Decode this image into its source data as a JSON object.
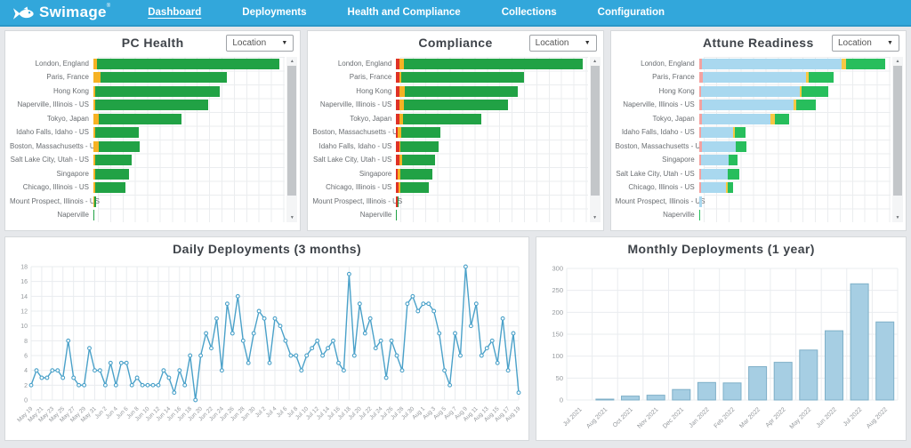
{
  "nav": {
    "brand": "Swimage",
    "brand_reg": "®",
    "items": [
      {
        "label": "Dashboard",
        "active": true
      },
      {
        "label": "Deployments",
        "active": false
      },
      {
        "label": "Health and Compliance",
        "active": false
      },
      {
        "label": "Collections",
        "active": false
      },
      {
        "label": "Configuration",
        "active": false
      }
    ]
  },
  "ui": {
    "filter_label": "Location",
    "icons": {
      "dropdown_arrow": "▼",
      "scroll_up": "▲",
      "scroll_down": "▼"
    }
  },
  "colors": {
    "nav_bg": "#32A7DB",
    "green": "#21A245",
    "green_bright": "#27BE5C",
    "amber": "#F6B223",
    "yellow": "#F7C844",
    "red": "#DF3226",
    "salmon": "#F4A2A0",
    "light_blue": "#A9D8EF",
    "line_blue": "#4AA1C9",
    "bar_blue": "#A6CEE3",
    "bar_blue_border": "#7FB0C8",
    "grid": "#E9ECEF",
    "tick_text": "#95999D"
  },
  "chart_data": [
    {
      "id": "pc_health",
      "type": "bar",
      "orientation": "horizontal",
      "stacked": true,
      "title": "PC Health",
      "categories": [
        "London, England",
        "Paris, France",
        "Hong Kong",
        "Naperville, Illinois - US",
        "Tokyo, Japan",
        "Idaho Falls, Idaho - US",
        "Boston, Massachusetts - US",
        "Salt Lake City, Utah - US",
        "Singapore",
        "Chicago, Illinois - US",
        "Mount Prospect, Illinois - US",
        "Naperville"
      ],
      "rows_pct": [
        [
          [
            "amber",
            2
          ],
          [
            "green",
            95
          ]
        ],
        [
          [
            "amber",
            3.5
          ],
          [
            "green",
            66
          ]
        ],
        [
          [
            "amber",
            1
          ],
          [
            "green",
            65
          ]
        ],
        [
          [
            "amber",
            1
          ],
          [
            "green",
            59
          ]
        ],
        [
          [
            "amber",
            3
          ],
          [
            "green",
            43
          ]
        ],
        [
          [
            "amber",
            1
          ],
          [
            "green",
            22.5
          ]
        ],
        [
          [
            "amber",
            3
          ],
          [
            "green",
            21
          ]
        ],
        [
          [
            "amber",
            1
          ],
          [
            "green",
            19
          ]
        ],
        [
          [
            "amber",
            0.7
          ],
          [
            "green",
            18
          ]
        ],
        [
          [
            "amber",
            0.7
          ],
          [
            "green",
            16
          ]
        ],
        [
          [
            "amber",
            0.6
          ],
          [
            "green",
            0.7
          ]
        ],
        [
          [
            "green",
            0.5
          ]
        ]
      ]
    },
    {
      "id": "compliance",
      "type": "bar",
      "orientation": "horizontal",
      "stacked": true,
      "title": "Compliance",
      "categories": [
        "London, England",
        "Paris, France",
        "Hong Kong",
        "Naperville, Illinois - US",
        "Tokyo, Japan",
        "Boston, Massachusetts - US",
        "Idaho Falls, Idaho - US",
        "Salt Lake City, Utah - US",
        "Singapore",
        "Chicago, Illinois - US",
        "Mount Prospect, Illinois - US",
        "Naperville"
      ],
      "rows_pct": [
        [
          [
            "red",
            1.6
          ],
          [
            "amber",
            2.6
          ],
          [
            "green",
            93
          ]
        ],
        [
          [
            "red",
            1.6
          ],
          [
            "amber",
            1.2
          ],
          [
            "green",
            64
          ]
        ],
        [
          [
            "red",
            1.6
          ],
          [
            "amber",
            3
          ],
          [
            "green",
            59
          ]
        ],
        [
          [
            "red",
            1.6
          ],
          [
            "amber",
            2.6
          ],
          [
            "green",
            54
          ]
        ],
        [
          [
            "red",
            1.6
          ],
          [
            "amber",
            2
          ],
          [
            "green",
            41
          ]
        ],
        [
          [
            "red",
            0.6
          ],
          [
            "amber",
            2
          ],
          [
            "green",
            20.5
          ]
        ],
        [
          [
            "red",
            1.6
          ],
          [
            "amber",
            0.5
          ],
          [
            "green",
            20
          ]
        ],
        [
          [
            "red",
            1.6
          ],
          [
            "amber",
            1.6
          ],
          [
            "green",
            17
          ]
        ],
        [
          [
            "red",
            0.6
          ],
          [
            "amber",
            1.6
          ],
          [
            "green",
            16.5
          ]
        ],
        [
          [
            "red",
            1.2
          ],
          [
            "amber",
            1.2
          ],
          [
            "green",
            14.5
          ]
        ],
        [
          [
            "red",
            0.6
          ],
          [
            "green",
            0.8
          ]
        ],
        [
          [
            "green",
            0.5
          ]
        ]
      ]
    },
    {
      "id": "attune",
      "type": "bar",
      "orientation": "horizontal",
      "stacked": true,
      "title": "Attune Readiness",
      "categories": [
        "London, England",
        "Paris, France",
        "Hong Kong",
        "Naperville, Illinois - US",
        "Tokyo, Japan",
        "Idaho Falls, Idaho - US",
        "Boston, Massachusetts - US",
        "Singapore",
        "Salt Lake City, Utah - US",
        "Chicago, Illinois - US",
        "Mount Prospect, Illinois - US",
        "Naperville"
      ],
      "rows_pct": [
        [
          [
            "salmon",
            1.5
          ],
          [
            "light_blue",
            73
          ],
          [
            "yellow",
            2.5
          ],
          [
            "green_bright",
            20
          ]
        ],
        [
          [
            "salmon",
            2
          ],
          [
            "light_blue",
            54
          ],
          [
            "yellow",
            1.5
          ],
          [
            "green_bright",
            13
          ]
        ],
        [
          [
            "salmon",
            1.2
          ],
          [
            "light_blue",
            51.5
          ],
          [
            "yellow",
            1
          ],
          [
            "green_bright",
            14
          ]
        ],
        [
          [
            "salmon",
            1.5
          ],
          [
            "light_blue",
            48
          ],
          [
            "yellow",
            1.5
          ],
          [
            "green_bright",
            10
          ]
        ],
        [
          [
            "salmon",
            1.5
          ],
          [
            "light_blue",
            36
          ],
          [
            "yellow",
            2
          ],
          [
            "green_bright",
            7.5
          ]
        ],
        [
          [
            "salmon",
            1.2
          ],
          [
            "light_blue",
            16.5
          ],
          [
            "yellow",
            1
          ],
          [
            "green_bright",
            5.5
          ]
        ],
        [
          [
            "salmon",
            1.5
          ],
          [
            "light_blue",
            17.5
          ],
          [
            "green_bright",
            6
          ]
        ],
        [
          [
            "salmon",
            1
          ],
          [
            "light_blue",
            14.5
          ],
          [
            "green_bright",
            4.5
          ]
        ],
        [
          [
            "salmon",
            1.2
          ],
          [
            "light_blue",
            14
          ],
          [
            "green_bright",
            6
          ]
        ],
        [
          [
            "salmon",
            1.2
          ],
          [
            "light_blue",
            13
          ],
          [
            "yellow",
            1
          ],
          [
            "green_bright",
            2.5
          ]
        ],
        [
          [
            "light_blue",
            1.5
          ]
        ],
        [
          [
            "green_bright",
            0.7
          ]
        ]
      ]
    },
    {
      "id": "daily",
      "type": "line",
      "title": "Daily Deployments (3 months)",
      "ylim": [
        0,
        18
      ],
      "ytick_step": 2,
      "grid": true,
      "x_labels": [
        "May 19",
        "May 21",
        "May 23",
        "May 25",
        "May 27",
        "May 29",
        "May 31",
        "Jun 2",
        "Jun 4",
        "Jun 6",
        "Jun 8",
        "Jun 10",
        "Jun 12",
        "Jun 14",
        "Jun 16",
        "Jun 18",
        "Jun 20",
        "Jun 22",
        "Jun 24",
        "Jun 26",
        "Jun 28",
        "Jun 30",
        "Jul 2",
        "Jul 4",
        "Jul 6",
        "Jul 8",
        "Jul 10",
        "Jul 12",
        "Jul 14",
        "Jul 16",
        "Jul 18",
        "Jul 20",
        "Jul 22",
        "Jul 24",
        "Jul 26",
        "Jul 28",
        "Jul 30",
        "Aug 1",
        "Aug 3",
        "Aug 5",
        "Aug 7",
        "Aug 9",
        "Aug 11",
        "Aug 13",
        "Aug 15",
        "Aug 17",
        "Aug 19"
      ],
      "values": [
        2,
        4,
        3,
        3,
        4,
        4,
        3,
        8,
        3,
        2,
        2,
        7,
        4,
        4,
        2,
        5,
        2,
        5,
        5,
        2,
        3,
        2,
        2,
        2,
        2,
        4,
        3,
        1,
        4,
        2,
        6,
        0,
        6,
        9,
        7,
        11,
        4,
        13,
        9,
        14,
        8,
        5,
        9,
        12,
        11,
        5,
        11,
        10,
        8,
        6,
        6,
        4,
        6,
        7,
        8,
        6,
        7,
        8,
        5,
        4,
        17,
        6,
        13,
        9,
        11,
        7,
        8,
        3,
        8,
        6,
        4,
        13,
        14,
        12,
        13,
        13,
        12,
        9,
        4,
        2,
        9,
        6,
        18,
        10,
        13,
        6,
        7,
        8,
        5,
        11,
        4,
        9,
        1
      ]
    },
    {
      "id": "monthly",
      "type": "bar",
      "title": "Monthly Deployments (1 year)",
      "ylim": [
        0,
        300
      ],
      "ytick_step": 50,
      "grid": true,
      "categories": [
        "Jul 2021",
        "Aug 2021",
        "Oct 2021",
        "Nov 2021",
        "Dec 2021",
        "Jan 2022",
        "Feb 2022",
        "Mar 2022",
        "Apr 2022",
        "May 2022",
        "Jun 2022",
        "Jul 2022",
        "Aug 2022"
      ],
      "values": [
        0,
        2,
        9,
        11,
        24,
        40,
        39,
        76,
        86,
        114,
        158,
        265,
        178
      ]
    }
  ]
}
